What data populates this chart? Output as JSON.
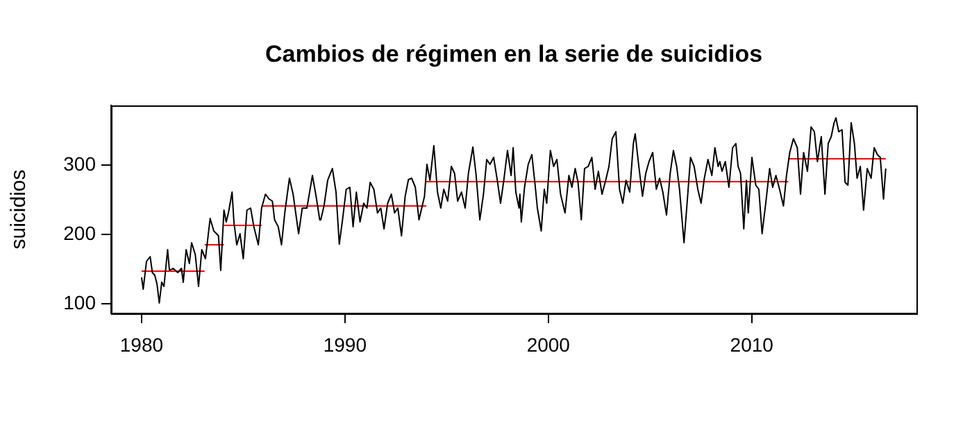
{
  "chart_data": {
    "type": "line",
    "title": "Cambios de régimen en la serie de suicidios",
    "ylabel": "suicidios",
    "xlim": [
      1978.5,
      2018.1
    ],
    "xticks": [
      1980,
      1990,
      2000,
      2010
    ],
    "ylim": [
      86,
      386
    ],
    "yticks": [
      100,
      200,
      300
    ],
    "grid": false,
    "legend": false,
    "marker": "none",
    "series": [
      {
        "color": "#000000",
        "x": [
          1980.0,
          1980.08,
          1980.24,
          1980.42,
          1980.53,
          1980.65,
          1980.76,
          1980.87,
          1980.99,
          1981.1,
          1981.28,
          1981.37,
          1981.55,
          1981.78,
          1981.96,
          1982.05,
          1982.19,
          1982.35,
          1982.46,
          1982.64,
          1982.8,
          1982.96,
          1983.14,
          1983.37,
          1983.55,
          1983.78,
          1983.89,
          1984.05,
          1984.16,
          1984.27,
          1984.45,
          1984.54,
          1984.68,
          1984.84,
          1985.0,
          1985.18,
          1985.36,
          1985.52,
          1985.74,
          1985.9,
          1986.09,
          1986.27,
          1986.43,
          1986.54,
          1986.72,
          1986.88,
          1987.04,
          1987.27,
          1987.45,
          1987.72,
          1987.9,
          1988.13,
          1988.4,
          1988.58,
          1988.76,
          1988.81,
          1988.97,
          1989.15,
          1989.38,
          1989.56,
          1989.72,
          1989.88,
          1990.06,
          1990.24,
          1990.4,
          1990.56,
          1990.74,
          1990.92,
          1991.08,
          1991.24,
          1991.42,
          1991.6,
          1991.76,
          1991.92,
          1992.1,
          1992.28,
          1992.44,
          1992.6,
          1992.78,
          1992.96,
          1993.12,
          1993.28,
          1993.46,
          1993.64,
          1993.91,
          1994.03,
          1994.18,
          1994.37,
          1994.55,
          1994.71,
          1994.86,
          1995.05,
          1995.23,
          1995.39,
          1995.54,
          1995.73,
          1995.91,
          1996.07,
          1996.29,
          1996.45,
          1996.63,
          1996.81,
          1996.97,
          1997.13,
          1997.31,
          1997.49,
          1997.65,
          1997.81,
          1997.99,
          1998.17,
          1998.27,
          1998.4,
          1998.56,
          1998.6,
          1998.67,
          1998.83,
          1999.01,
          1999.19,
          1999.35,
          1999.46,
          1999.65,
          1999.8,
          1999.92,
          2000.1,
          2000.26,
          2000.42,
          2000.6,
          2000.82,
          2001.01,
          2001.16,
          2001.32,
          2001.46,
          2001.62,
          2001.78,
          2001.96,
          2002.14,
          2002.3,
          2002.46,
          2002.64,
          2002.82,
          2002.98,
          2003.14,
          2003.32,
          2003.5,
          2003.66,
          2003.82,
          2004.0,
          2004.18,
          2004.27,
          2004.45,
          2004.63,
          2004.79,
          2004.95,
          2005.13,
          2005.31,
          2005.47,
          2005.63,
          2005.81,
          2005.99,
          2006.15,
          2006.31,
          2006.45,
          2006.67,
          2006.83,
          2006.99,
          2007.17,
          2007.35,
          2007.51,
          2007.67,
          2007.85,
          2008.04,
          2008.19,
          2008.35,
          2008.43,
          2008.54,
          2008.7,
          2008.88,
          2009.06,
          2009.22,
          2009.33,
          2009.45,
          2009.61,
          2009.74,
          2009.83,
          2010.01,
          2010.2,
          2010.35,
          2010.51,
          2010.69,
          2010.88,
          2011.03,
          2011.19,
          2011.37,
          2011.56,
          2011.71,
          2011.87,
          2012.05,
          2012.24,
          2012.4,
          2012.55,
          2012.74,
          2012.92,
          2013.08,
          2013.23,
          2013.42,
          2013.6,
          2013.76,
          2013.91,
          2014.05,
          2014.14,
          2014.28,
          2014.44,
          2014.59,
          2014.73,
          2014.89,
          2015.05,
          2015.18,
          2015.34,
          2015.5,
          2015.68,
          2015.87,
          2016.02,
          2016.18,
          2016.32,
          2016.48,
          2016.59
        ],
        "values": [
          138,
          121,
          161,
          168,
          145,
          141,
          128,
          101,
          131,
          125,
          178,
          148,
          151,
          145,
          151,
          131,
          178,
          158,
          188,
          171,
          125,
          178,
          165,
          223,
          205,
          198,
          148,
          235,
          218,
          231,
          261,
          218,
          185,
          201,
          165,
          235,
          238,
          211,
          185,
          238,
          258,
          251,
          248,
          221,
          211,
          185,
          231,
          281,
          258,
          201,
          238,
          238,
          285,
          255,
          221,
          221,
          241,
          278,
          295,
          261,
          186,
          221,
          265,
          268,
          211,
          261,
          218,
          245,
          238,
          275,
          265,
          231,
          238,
          208,
          245,
          258,
          231,
          238,
          198,
          255,
          279,
          281,
          268,
          221,
          255,
          301,
          278,
          328,
          261,
          238,
          265,
          248,
          298,
          288,
          248,
          261,
          238,
          288,
          326,
          285,
          221,
          258,
          308,
          301,
          311,
          278,
          245,
          278,
          321,
          285,
          325,
          261,
          238,
          258,
          218,
          268,
          301,
          315,
          271,
          238,
          205,
          265,
          245,
          321,
          298,
          308,
          258,
          231,
          285,
          268,
          295,
          275,
          221,
          295,
          298,
          311,
          265,
          291,
          258,
          278,
          298,
          338,
          348,
          265,
          245,
          278,
          261,
          331,
          345,
          298,
          255,
          288,
          305,
          318,
          265,
          281,
          261,
          228,
          288,
          321,
          298,
          265,
          188,
          248,
          311,
          298,
          265,
          245,
          281,
          308,
          285,
          325,
          298,
          305,
          291,
          305,
          268,
          325,
          331,
          298,
          288,
          208,
          278,
          231,
          311,
          271,
          265,
          201,
          245,
          295,
          268,
          285,
          265,
          241,
          285,
          318,
          338,
          325,
          258,
          318,
          291,
          355,
          348,
          305,
          341,
          258,
          331,
          341,
          361,
          368,
          348,
          351,
          275,
          271,
          361,
          331,
          281,
          298,
          235,
          295,
          281,
          325,
          315,
          311,
          251,
          295
        ]
      },
      {
        "color": "#ff0000",
        "x": [
          1980.0,
          1983.1
        ],
        "values": [
          147,
          147
        ]
      },
      {
        "color": "#ff0000",
        "x": [
          1983.1,
          1984.05
        ],
        "values": [
          185,
          185
        ]
      },
      {
        "color": "#ff0000",
        "x": [
          1984.05,
          1985.9
        ],
        "values": [
          213,
          213
        ]
      },
      {
        "color": "#ff0000",
        "x": [
          1985.9,
          1994.0
        ],
        "values": [
          241,
          241
        ]
      },
      {
        "color": "#ff0000",
        "x": [
          1994.0,
          2011.8
        ],
        "values": [
          276,
          276
        ]
      },
      {
        "color": "#ff0000",
        "x": [
          2011.8,
          2016.59
        ],
        "values": [
          309,
          309
        ]
      }
    ]
  }
}
